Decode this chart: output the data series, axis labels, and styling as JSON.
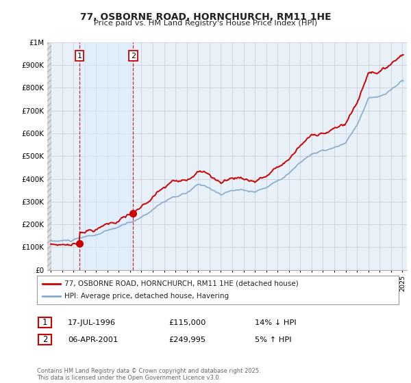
{
  "title": "77, OSBORNE ROAD, HORNCHURCH, RM11 1HE",
  "subtitle": "Price paid vs. HM Land Registry's House Price Index (HPI)",
  "xlim_left": 1993.7,
  "xlim_right": 2025.4,
  "ylim_top": 1000000,
  "yticks": [
    0,
    100000,
    200000,
    300000,
    400000,
    500000,
    600000,
    700000,
    800000,
    900000,
    1000000
  ],
  "ytick_labels": [
    "£0",
    "£100K",
    "£200K",
    "£300K",
    "£400K",
    "£500K",
    "£600K",
    "£700K",
    "£800K",
    "£900K",
    "£1M"
  ],
  "sale1_x": 1996.54,
  "sale1_y": 115000,
  "sale2_x": 2001.27,
  "sale2_y": 249995,
  "hatch_end_x": 1994.08,
  "shade_color": "#ddeeff",
  "legend_line1": "77, OSBORNE ROAD, HORNCHURCH, RM11 1HE (detached house)",
  "legend_line2": "HPI: Average price, detached house, Havering",
  "table_rows": [
    {
      "num": "1",
      "date": "17-JUL-1996",
      "price": "£115,000",
      "hpi": "14% ↓ HPI"
    },
    {
      "num": "2",
      "date": "06-APR-2001",
      "price": "£249,995",
      "hpi": "5% ↑ HPI"
    }
  ],
  "footer": "Contains HM Land Registry data © Crown copyright and database right 2025.\nThis data is licensed under the Open Government Licence v3.0.",
  "red_color": "#cc0000",
  "blue_color": "#88aacc",
  "bg_color": "#e8f0f8",
  "grid_color": "#ccccdd"
}
